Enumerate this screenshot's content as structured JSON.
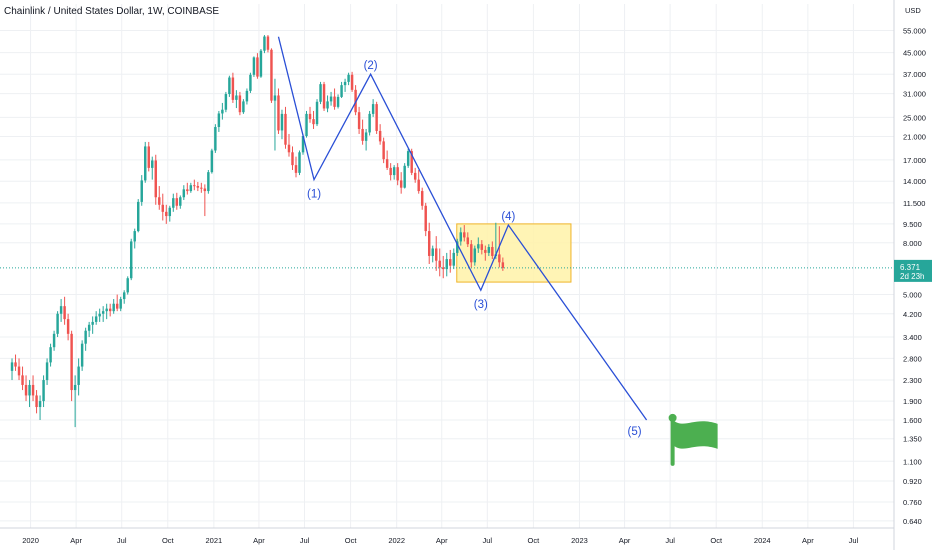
{
  "chart_data": {
    "type": "candlestick",
    "title": "Chainlink / United States Dollar, 1W, COINBASE",
    "currency": "USD",
    "y_scale": "log",
    "ylim": [
      0.6,
      70
    ],
    "y_ticks": [
      "55.000",
      "45.000",
      "37.000",
      "31.000",
      "25.000",
      "21.000",
      "17.000",
      "14.000",
      "11.500",
      "9.500",
      "8.000",
      "6.371",
      "5.000",
      "4.200",
      "3.400",
      "2.800",
      "2.300",
      "1.900",
      "1.600",
      "1.350",
      "1.100",
      "0.920",
      "0.760",
      "0.640"
    ],
    "x_ticks": [
      "2020",
      "Apr",
      "Jul",
      "Oct",
      "2021",
      "Apr",
      "Jul",
      "Oct",
      "2022",
      "Apr",
      "Jul",
      "Oct",
      "2023",
      "Apr",
      "Jul",
      "Oct",
      "2024",
      "Apr",
      "Jul"
    ],
    "grid": true,
    "colors": {
      "up": "#26a69a",
      "down": "#ef5350",
      "wave": "#2a4fd6",
      "box_fill": "#fff2a8",
      "box_stroke": "#f0b429",
      "flag": "#4caf50",
      "last_price": "#26a69a"
    },
    "last_price": {
      "value": "6.371",
      "countdown": "2d 23h"
    },
    "waves": [
      {
        "label": "(1)",
        "date": "2021-07-20",
        "price": 14.2
      },
      {
        "label": "(2)",
        "date": "2021-11-10",
        "price": 37
      },
      {
        "label": "(3)",
        "date": "2022-06-18",
        "price": 5.2
      },
      {
        "label": "(4)",
        "date": "2022-08-12",
        "price": 9.4
      },
      {
        "label": "(5)",
        "date": "2023-05-15",
        "price": 1.6
      }
    ],
    "wave_start": {
      "date": "2021-05-10",
      "price": 52
    },
    "consolidation_box": {
      "from": "2022-05-01",
      "to": "2022-12-15",
      "top": 9.5,
      "bottom": 5.6
    },
    "target_flag": {
      "date": "2023-06-20",
      "price": 1.3
    },
    "candles": [
      [
        2.5,
        2.8,
        2.3,
        2.7
      ],
      [
        2.7,
        2.9,
        2.5,
        2.6
      ],
      [
        2.6,
        2.8,
        2.3,
        2.4
      ],
      [
        2.4,
        2.6,
        2.1,
        2.2
      ],
      [
        2.2,
        2.4,
        1.9,
        2.0
      ],
      [
        2.0,
        2.3,
        1.8,
        2.2
      ],
      [
        2.2,
        2.4,
        1.9,
        2.0
      ],
      [
        2.0,
        2.1,
        1.7,
        1.8
      ],
      [
        1.8,
        2.0,
        1.6,
        1.9
      ],
      [
        1.9,
        2.4,
        1.8,
        2.3
      ],
      [
        2.3,
        2.8,
        2.2,
        2.7
      ],
      [
        2.7,
        3.2,
        2.6,
        3.1
      ],
      [
        3.1,
        3.6,
        3.0,
        3.5
      ],
      [
        3.5,
        4.3,
        3.4,
        4.2
      ],
      [
        4.2,
        4.8,
        3.9,
        4.5
      ],
      [
        4.5,
        4.9,
        3.8,
        4.0
      ],
      [
        4.0,
        4.2,
        3.3,
        3.5
      ],
      [
        3.5,
        3.6,
        1.9,
        2.1
      ],
      [
        2.1,
        2.4,
        1.5,
        2.2
      ],
      [
        2.2,
        2.8,
        2.0,
        2.6
      ],
      [
        2.6,
        3.3,
        2.5,
        3.2
      ],
      [
        3.2,
        3.7,
        3.0,
        3.6
      ],
      [
        3.6,
        3.9,
        3.4,
        3.8
      ],
      [
        3.8,
        4.1,
        3.5,
        3.9
      ],
      [
        3.9,
        4.3,
        3.8,
        4.1
      ],
      [
        4.1,
        4.4,
        3.9,
        4.2
      ],
      [
        4.2,
        4.5,
        3.9,
        4.3
      ],
      [
        4.3,
        4.6,
        4.0,
        4.4
      ],
      [
        4.4,
        4.6,
        4.1,
        4.3
      ],
      [
        4.3,
        4.8,
        4.2,
        4.6
      ],
      [
        4.6,
        5.0,
        4.3,
        4.4
      ],
      [
        4.4,
        4.9,
        4.3,
        4.8
      ],
      [
        4.8,
        5.2,
        4.6,
        5.1
      ],
      [
        5.1,
        5.9,
        5.0,
        5.8
      ],
      [
        5.8,
        8.3,
        5.7,
        8.1
      ],
      [
        8.1,
        9.1,
        7.6,
        8.9
      ],
      [
        8.9,
        11.9,
        8.8,
        11.6
      ],
      [
        11.6,
        14.8,
        11.2,
        14.1
      ],
      [
        14.1,
        20,
        13.8,
        19.2
      ],
      [
        19.2,
        20,
        15.3,
        15.8
      ],
      [
        15.8,
        17.5,
        14.2,
        16.9
      ],
      [
        16.9,
        17.8,
        11.3,
        12.1
      ],
      [
        12.1,
        13.4,
        10.8,
        11.3
      ],
      [
        11.3,
        12.5,
        9.8,
        10.6
      ],
      [
        10.6,
        11.3,
        9.5,
        10.2
      ],
      [
        10.2,
        11.2,
        9.7,
        11.0
      ],
      [
        11.0,
        12.5,
        10.6,
        12.0
      ],
      [
        12.0,
        12.6,
        10.8,
        11.2
      ],
      [
        11.2,
        12.3,
        10.9,
        12.1
      ],
      [
        12.1,
        13.5,
        11.8,
        13.0
      ],
      [
        13.0,
        13.8,
        12.4,
        12.8
      ],
      [
        12.8,
        13.8,
        12.6,
        13.5
      ],
      [
        13.5,
        14.2,
        12.9,
        13.4
      ],
      [
        13.4,
        13.9,
        12.8,
        13.2
      ],
      [
        13.2,
        13.8,
        12.6,
        13.1
      ],
      [
        13.1,
        13.6,
        10.2,
        12.8
      ],
      [
        12.8,
        15.5,
        12.5,
        15.2
      ],
      [
        15.2,
        18.8,
        15.0,
        18.5
      ],
      [
        18.5,
        23.5,
        18.1,
        22.9
      ],
      [
        22.9,
        26.5,
        21.9,
        25.9
      ],
      [
        25.9,
        28.5,
        24.5,
        26.8
      ],
      [
        26.8,
        31.5,
        26.2,
        30.9
      ],
      [
        30.9,
        36.5,
        30.1,
        35.9
      ],
      [
        35.9,
        37.5,
        28.5,
        29.3
      ],
      [
        29.3,
        32,
        27.2,
        30.5
      ],
      [
        30.5,
        31.5,
        25.5,
        26.2
      ],
      [
        26.2,
        29.5,
        25.8,
        28.9
      ],
      [
        28.9,
        32.5,
        28.1,
        31.8
      ],
      [
        31.8,
        37.5,
        31.2,
        36.8
      ],
      [
        36.8,
        43.5,
        36.1,
        43.1
      ],
      [
        43.1,
        44.8,
        35.5,
        36.2
      ],
      [
        36.2,
        46.5,
        35.8,
        45.8
      ],
      [
        45.8,
        52.8,
        44.8,
        52.1
      ],
      [
        52.1,
        52.8,
        45.1,
        46.2
      ],
      [
        46.2,
        46.8,
        28.5,
        29.1
      ],
      [
        29.1,
        35.5,
        18.5,
        30.5
      ],
      [
        30.5,
        32.5,
        21.5,
        22.2
      ],
      [
        22.2,
        26.8,
        20.5,
        25.8
      ],
      [
        25.8,
        27.5,
        18.8,
        19.5
      ],
      [
        19.5,
        21.5,
        17.5,
        18.2
      ],
      [
        18.2,
        19.2,
        15.5,
        16.2
      ],
      [
        16.2,
        17.5,
        14.5,
        15.1
      ],
      [
        15.1,
        18.5,
        14.8,
        18.2
      ],
      [
        18.2,
        21.5,
        17.8,
        21.1
      ],
      [
        21.1,
        26.5,
        20.8,
        25.8
      ],
      [
        25.8,
        27.5,
        23.8,
        24.6
      ],
      [
        24.6,
        26.5,
        22.5,
        23.5
      ],
      [
        23.5,
        29.5,
        23.1,
        28.8
      ],
      [
        28.8,
        34.5,
        28.2,
        33.8
      ],
      [
        33.8,
        34.5,
        26.5,
        27.1
      ],
      [
        27.1,
        30.5,
        26.2,
        28.9
      ],
      [
        28.9,
        31.5,
        27.8,
        30.2
      ],
      [
        30.2,
        32.5,
        26.8,
        27.5
      ],
      [
        27.5,
        30.8,
        27.1,
        30.1
      ],
      [
        30.1,
        34.5,
        29.8,
        33.5
      ],
      [
        33.5,
        35.5,
        31.5,
        34.5
      ],
      [
        34.5,
        37.5,
        33.5,
        36.8
      ],
      [
        36.8,
        37.8,
        31.5,
        32.1
      ],
      [
        32.1,
        33.5,
        25.5,
        26.2
      ],
      [
        26.2,
        27.5,
        21.5,
        22.5
      ],
      [
        22.5,
        24.5,
        19.5,
        20.2
      ],
      [
        20.2,
        22.5,
        18.5,
        21.8
      ],
      [
        21.8,
        26.5,
        21.2,
        25.8
      ],
      [
        25.8,
        29.5,
        25.1,
        28.2
      ],
      [
        28.2,
        28.8,
        21.5,
        22.1
      ],
      [
        22.1,
        23.5,
        19.5,
        20.1
      ],
      [
        20.1,
        20.8,
        16.5,
        17.1
      ],
      [
        17.1,
        18.5,
        15.5,
        15.8
      ],
      [
        15.8,
        16.5,
        14.1,
        14.8
      ],
      [
        14.8,
        16.2,
        14.2,
        15.9
      ],
      [
        15.9,
        16.5,
        13.5,
        14.1
      ],
      [
        14.1,
        15.2,
        12.5,
        13.2
      ],
      [
        13.2,
        16.5,
        13.1,
        16.1
      ],
      [
        16.1,
        18.8,
        15.8,
        18.4
      ],
      [
        18.4,
        18.8,
        14.8,
        15.1
      ],
      [
        15.1,
        15.8,
        13.8,
        14.2
      ],
      [
        14.2,
        15.5,
        12.5,
        12.8
      ],
      [
        12.8,
        13.2,
        10.8,
        11.2
      ],
      [
        11.2,
        11.5,
        8.5,
        8.9
      ],
      [
        8.9,
        9.6,
        6.6,
        7.1
      ],
      [
        7.1,
        7.8,
        6.7,
        7.6
      ],
      [
        7.6,
        8.5,
        6.2,
        6.8
      ],
      [
        6.8,
        7.6,
        5.9,
        6.4
      ],
      [
        6.4,
        7.1,
        5.8,
        6.3
      ],
      [
        6.3,
        7.3,
        5.9,
        6.9
      ],
      [
        6.9,
        7.5,
        6.1,
        6.5
      ],
      [
        6.5,
        7.6,
        6.3,
        7.3
      ],
      [
        7.3,
        8.3,
        7.1,
        8.1
      ],
      [
        8.1,
        9.2,
        7.8,
        8.8
      ],
      [
        8.8,
        9.4,
        8.1,
        8.4
      ],
      [
        8.4,
        8.8,
        7.7,
        7.9
      ],
      [
        7.9,
        8.2,
        6.4,
        6.7
      ],
      [
        6.7,
        7.8,
        6.5,
        7.6
      ],
      [
        7.6,
        8.4,
        7.3,
        7.9
      ],
      [
        7.9,
        8.2,
        7.2,
        7.5
      ],
      [
        7.5,
        7.8,
        6.8,
        7.3
      ],
      [
        7.3,
        7.9,
        7.1,
        7.7
      ],
      [
        7.7,
        8.1,
        6.9,
        7.1
      ],
      [
        7.1,
        9.6,
        6.9,
        7.2
      ],
      [
        7.2,
        9.3,
        6.4,
        6.7
      ],
      [
        6.7,
        7.0,
        6.2,
        6.37
      ]
    ]
  }
}
